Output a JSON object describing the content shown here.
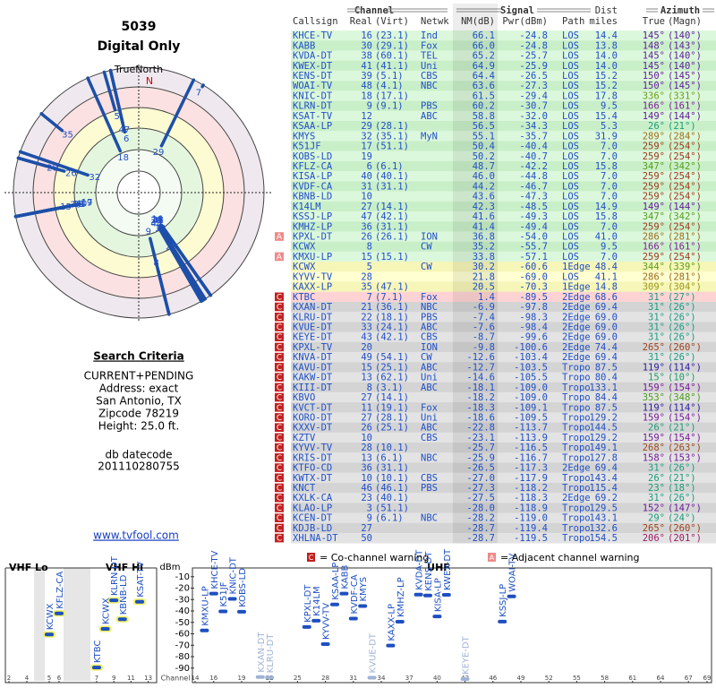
{
  "header": {
    "id": "5039",
    "mode": "Digital Only",
    "compass": "TrueNorth",
    "north": "N"
  },
  "search": {
    "title": "Search Criteria",
    "lines": [
      "CURRENT+PENDING",
      "Address: exact",
      "San Antonio, TX",
      "Zipcode 78219",
      "Height: 25.0 ft."
    ],
    "datecode_label": "db datecode",
    "datecode": "201110280755"
  },
  "link": "www.tvfool.com",
  "table": {
    "groups": [
      "Channel",
      "Signal",
      "Azimuth"
    ],
    "dist_label": "Dist",
    "columns": [
      "Callsign",
      "Real",
      "(Virt)",
      "Netwk",
      "NM(dB)",
      "Pwr(dBm)",
      "Path",
      "miles",
      "True",
      "(Magn)"
    ],
    "rows": [
      [
        "KHCE-TV",
        16,
        "(23.1)",
        "Ind",
        "66.1",
        "-24.8",
        "LOS",
        "14.4",
        "145°",
        "(140°)",
        null
      ],
      [
        "KABB",
        30,
        "(29.1)",
        "Fox",
        "66.0",
        "-24.8",
        "LOS",
        "13.8",
        "148°",
        "(143°)",
        null
      ],
      [
        "KVDA-DT",
        38,
        "(60.1)",
        "TEL",
        "65.2",
        "-25.7",
        "LOS",
        "14.0",
        "145°",
        "(140°)",
        null
      ],
      [
        "KWEX-DT",
        41,
        "(41.1)",
        "Uni",
        "64.9",
        "-25.9",
        "LOS",
        "14.0",
        "145°",
        "(140°)",
        null
      ],
      [
        "KENS-DT",
        39,
        "(5.1)",
        "CBS",
        "64.4",
        "-26.5",
        "LOS",
        "15.2",
        "150°",
        "(145°)",
        null
      ],
      [
        "WOAI-TV",
        48,
        "(4.1)",
        "NBC",
        "63.6",
        "-27.3",
        "LOS",
        "15.2",
        "150°",
        "(145°)",
        null
      ],
      [
        "KNIC-DT",
        18,
        "(17.1)",
        null,
        "61.5",
        "-29.4",
        "LOS",
        "17.8",
        "336°",
        "(331°)",
        null
      ],
      [
        "KLRN-DT",
        9,
        "(9.1)",
        "PBS",
        "60.2",
        "-30.7",
        "LOS",
        "9.5",
        "166°",
        "(161°)",
        null
      ],
      [
        "KSAT-TV",
        12,
        null,
        "ABC",
        "58.8",
        "-32.0",
        "LOS",
        "15.4",
        "149°",
        "(144°)",
        null
      ],
      [
        "KSAA-LP",
        29,
        "(28.1)",
        null,
        "56.5",
        "-34.3",
        "LOS",
        "5.3",
        "26°",
        "(21°)",
        null
      ],
      [
        "KMYS",
        32,
        "(35.1)",
        "MyN",
        "55.1",
        "-35.7",
        "LOS",
        "31.9",
        "289°",
        "(284°)",
        null
      ],
      [
        "K51JF",
        17,
        "(51.1)",
        null,
        "50.4",
        "-40.4",
        "LOS",
        "7.0",
        "259°",
        "(254°)",
        null
      ],
      [
        "KOBS-LD",
        19,
        null,
        null,
        "50.2",
        "-40.7",
        "LOS",
        "7.0",
        "259°",
        "(254°)",
        null
      ],
      [
        "KFLZ-CA",
        6,
        "(6.1)",
        null,
        "48.7",
        "-42.2",
        "LOS",
        "15.8",
        "347°",
        "(342°)",
        null
      ],
      [
        "KISA-LP",
        40,
        "(40.1)",
        null,
        "46.0",
        "-44.8",
        "LOS",
        "7.0",
        "259°",
        "(254°)",
        null
      ],
      [
        "KVDF-CA",
        31,
        "(31.1)",
        null,
        "44.2",
        "-46.7",
        "LOS",
        "7.0",
        "259°",
        "(254°)",
        null
      ],
      [
        "KBNB-LD",
        10,
        null,
        null,
        "43.6",
        "-47.3",
        "LOS",
        "7.0",
        "259°",
        "(254°)",
        null
      ],
      [
        "K14LM",
        27,
        "(14.1)",
        null,
        "42.3",
        "-48.5",
        "LOS",
        "14.9",
        "149°",
        "(144°)",
        null
      ],
      [
        "KSSJ-LP",
        47,
        "(42.1)",
        null,
        "41.6",
        "-49.3",
        "LOS",
        "15.8",
        "347°",
        "(342°)",
        null
      ],
      [
        "KMHZ-LP",
        36,
        "(31.1)",
        null,
        "41.4",
        "-49.4",
        "LOS",
        "7.0",
        "259°",
        "(254°)",
        null
      ],
      [
        "KPXL-DT",
        26,
        "(26.1)",
        "ION",
        "36.8",
        "-54.0",
        "LOS",
        "41.0",
        "286°",
        "(281°)",
        "A"
      ],
      [
        "KCWX",
        8,
        null,
        "CW",
        "35.2",
        "-55.7",
        "LOS",
        "9.5",
        "166°",
        "(161°)",
        null
      ],
      [
        "KMXU-LP",
        15,
        "(15.1)",
        null,
        "33.8",
        "-57.1",
        "LOS",
        "7.0",
        "259°",
        "(254°)",
        "A"
      ],
      [
        "KCWX",
        5,
        null,
        "CW",
        "30.2",
        "-60.6",
        "1Edge",
        "48.4",
        "344°",
        "(339°)",
        null
      ],
      [
        "KYVV-TV",
        28,
        null,
        null,
        "21.8",
        "-69.0",
        "LOS",
        "41.1",
        "286°",
        "(281°)",
        null
      ],
      [
        "KAXX-LP",
        35,
        "(47.1)",
        null,
        "20.5",
        "-70.3",
        "1Edge",
        "14.8",
        "309°",
        "(304°)",
        null
      ],
      [
        "KTBC",
        7,
        "(7.1)",
        "Fox",
        "1.4",
        "-89.5",
        "2Edge",
        "68.6",
        "31°",
        "(27°)",
        "C"
      ],
      [
        "KXAN-DT",
        21,
        "(36.1)",
        "NBC",
        "-6.9",
        "-97.8",
        "2Edge",
        "69.4",
        "31°",
        "(26°)",
        "C"
      ],
      [
        "KLRU-DT",
        22,
        "(18.1)",
        "PBS",
        "-7.4",
        "-98.3",
        "2Edge",
        "69.0",
        "31°",
        "(26°)",
        "C"
      ],
      [
        "KVUE-DT",
        33,
        "(24.1)",
        "ABC",
        "-7.6",
        "-98.4",
        "2Edge",
        "69.0",
        "31°",
        "(26°)",
        "C"
      ],
      [
        "KEYE-DT",
        43,
        "(42.1)",
        "CBS",
        "-8.7",
        "-99.6",
        "2Edge",
        "69.0",
        "31°",
        "(26°)",
        "C"
      ],
      [
        "KPXL-TV",
        20,
        null,
        "ION",
        "-9.8",
        "-100.6",
        "2Edge",
        "74.4",
        "265°",
        "(260°)",
        "C"
      ],
      [
        "KNVA-DT",
        49,
        "(54.1)",
        "CW",
        "-12.6",
        "-103.4",
        "2Edge",
        "69.4",
        "31°",
        "(26°)",
        "C"
      ],
      [
        "KAVU-DT",
        15,
        "(25.1)",
        "ABC",
        "-12.7",
        "-103.5",
        "Tropo",
        "87.5",
        "119°",
        "(114°)",
        "C"
      ],
      [
        "KAKW-DT",
        13,
        "(62.1)",
        "Uni",
        "-14.6",
        "-105.5",
        "Tropo",
        "80.4",
        "15°",
        "(10°)",
        "C"
      ],
      [
        "KIII-DT",
        8,
        "(3.1)",
        "ABC",
        "-18.1",
        "-109.0",
        "Tropo",
        "133.1",
        "159°",
        "(154°)",
        "C"
      ],
      [
        "KBVO",
        27,
        "(14.1)",
        null,
        "-18.2",
        "-109.0",
        "Tropo",
        "84.4",
        "353°",
        "(348°)",
        "C"
      ],
      [
        "KVCT-DT",
        11,
        "(19.1)",
        "Fox",
        "-18.3",
        "-109.1",
        "Tropo",
        "87.5",
        "119°",
        "(114°)",
        "C"
      ],
      [
        "KORO-DT",
        27,
        "(28.1)",
        "Uni",
        "-18.6",
        "-109.5",
        "Tropo",
        "129.2",
        "159°",
        "(154°)",
        "C"
      ],
      [
        "KXXV-DT",
        26,
        "(25.1)",
        "ABC",
        "-22.8",
        "-113.7",
        "Tropo",
        "144.5",
        "26°",
        "(21°)",
        "C"
      ],
      [
        "KZTV",
        10,
        null,
        "CBS",
        "-23.1",
        "-113.9",
        "Tropo",
        "129.2",
        "159°",
        "(154°)",
        "C"
      ],
      [
        "KYVV-TV",
        28,
        "(10.1)",
        null,
        "-25.7",
        "-116.5",
        "Tropo",
        "149.1",
        "268°",
        "(263°)",
        "C"
      ],
      [
        "KRIS-DT",
        13,
        "(6.1)",
        "NBC",
        "-25.9",
        "-116.7",
        "Tropo",
        "127.8",
        "158°",
        "(153°)",
        "C"
      ],
      [
        "KTFO-CD",
        36,
        "(31.1)",
        null,
        "-26.5",
        "-117.3",
        "2Edge",
        "69.4",
        "31°",
        "(26°)",
        "C"
      ],
      [
        "KWTX-DT",
        10,
        "(10.1)",
        "CBS",
        "-27.0",
        "-117.9",
        "Tropo",
        "143.4",
        "26°",
        "(21°)",
        "C"
      ],
      [
        "KNCT",
        46,
        "(46.1)",
        "PBS",
        "-27.3",
        "-118.2",
        "Tropo",
        "115.4",
        "23°",
        "(18°)",
        "C"
      ],
      [
        "KXLK-CA",
        23,
        "(40.1)",
        null,
        "-27.5",
        "-118.3",
        "2Edge",
        "69.2",
        "31°",
        "(26°)",
        "C"
      ],
      [
        "KLAO-LP",
        3,
        "(51.1)",
        null,
        "-28.0",
        "-118.9",
        "Tropo",
        "129.5",
        "152°",
        "(147°)",
        "C"
      ],
      [
        "KCEN-DT",
        9,
        "(6.1)",
        "NBC",
        "-28.2",
        "-119.0",
        "Tropo",
        "143.1",
        "29°",
        "(24°)",
        "C"
      ],
      [
        "KDJB-LD",
        27,
        null,
        null,
        "-28.7",
        "-119.4",
        "Tropo",
        "132.6",
        "265°",
        "(260°)",
        "C"
      ],
      [
        "XHLNA-DT",
        50,
        null,
        null,
        "-28.7",
        "-119.5",
        "Tropo",
        "154.5",
        "206°",
        "(201°)",
        "C"
      ]
    ]
  },
  "spectrum": {
    "bands": [
      "VHF Lo",
      "VHF Hi",
      "UHF"
    ],
    "unit": "dBm",
    "xlabel": "Channel",
    "ylim": [
      -100,
      0
    ],
    "yticks": [
      -10,
      -20,
      -30,
      -40,
      -50,
      -60,
      -70,
      -80,
      -90
    ],
    "xticks": [
      2,
      4,
      5,
      6,
      7,
      9,
      11,
      13,
      14,
      16,
      19,
      22,
      25,
      28,
      31,
      34,
      37,
      40,
      43,
      46,
      49,
      52,
      55,
      58,
      61,
      64,
      67,
      69
    ]
  },
  "legend": [
    {
      "symbol": "C",
      "text": "= Co-channel warning"
    },
    {
      "symbol": "A",
      "text": "= Adjacent channel warning"
    }
  ]
}
